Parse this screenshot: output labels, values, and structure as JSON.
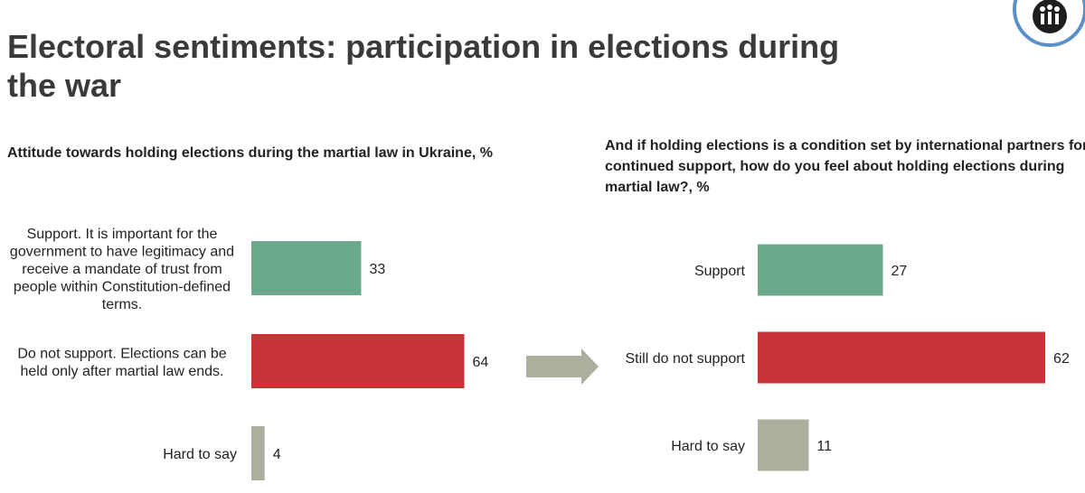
{
  "page": {
    "title": "Electoral sentiments: participation in elections during the war"
  },
  "colors": {
    "support": "#6aaa8a",
    "not_support": "#c73336",
    "hard_to_say": "#aeae9f",
    "arrow": "#aeae9f",
    "logo_ring": "#5b8fc7"
  },
  "chart_data": [
    {
      "type": "bar",
      "orientation": "horizontal",
      "title": "Attitude towards holding elections during the martial law in Ukraine, %",
      "categories": [
        "Support. It is important for the government to have legitimacy and receive a mandate of trust from people within Constitution-defined terms.",
        "Do not support. Elections can be held only after martial law ends.",
        "Hard to say"
      ],
      "label_lines": [
        [
          "Support. It is important for the",
          "government to have legitimacy and",
          "receive a mandate of trust from",
          "people within Constitution-defined",
          "terms."
        ],
        [
          "Do not support. Elections can be",
          "held only after martial law ends."
        ],
        [
          "Hard to say"
        ]
      ],
      "values": [
        33,
        64,
        4
      ],
      "colors": [
        "#6aaa8a",
        "#c73336",
        "#aeae9f"
      ],
      "xlim": [
        0,
        100
      ],
      "unit": "%"
    },
    {
      "type": "bar",
      "orientation": "horizontal",
      "title": "And if holding elections is a condition set by international partners for continued support, how do you feel about holding elections during martial law?, %",
      "title_lines": [
        "And if holding elections is a condition set by international partners for",
        "continued support, how do you feel about holding elections during",
        "martial law?, %"
      ],
      "categories": [
        "Support",
        "Still do not support",
        "Hard to say"
      ],
      "label_lines": [
        [
          "Support"
        ],
        [
          "Still do not support"
        ],
        [
          "Hard to say"
        ]
      ],
      "values": [
        27,
        62,
        11
      ],
      "colors": [
        "#6aaa8a",
        "#c73336",
        "#aeae9f"
      ],
      "xlim": [
        0,
        100
      ],
      "unit": "%"
    }
  ]
}
